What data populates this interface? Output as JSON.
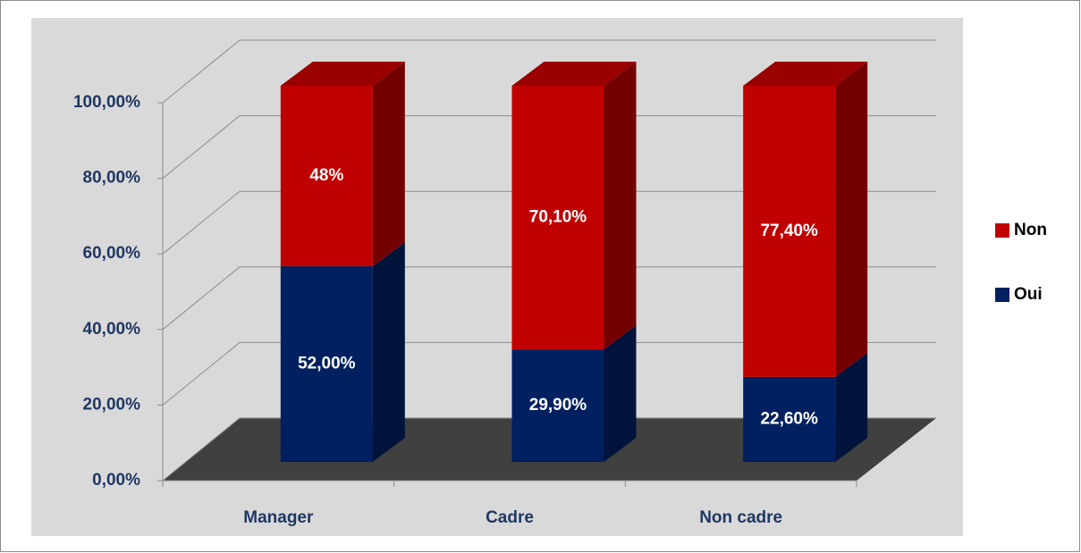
{
  "chart_data": {
    "type": "bar3d_stacked",
    "categories": [
      "Manager",
      "Cadre",
      "Non cadre"
    ],
    "series": [
      {
        "name": "Oui",
        "color": "#002060",
        "values": [
          52,
          29.9,
          22.6
        ],
        "value_labels": [
          "52,00%",
          "29,90%",
          "22,60%"
        ]
      },
      {
        "name": "Non",
        "color": "#c00000",
        "values": [
          48,
          70.1,
          77.4
        ],
        "value_labels": [
          "48%",
          "70,10%",
          "77,40%"
        ]
      }
    ],
    "ylim": [
      0,
      100
    ],
    "yticks": [
      {
        "value": 0,
        "label": "0,00%"
      },
      {
        "value": 20,
        "label": "20,00%"
      },
      {
        "value": 40,
        "label": "40,00%"
      },
      {
        "value": 60,
        "label": "60,00%"
      },
      {
        "value": 80,
        "label": "80,00%"
      },
      {
        "value": 100,
        "label": "100,00%"
      }
    ],
    "grid": true,
    "legend": "right"
  }
}
